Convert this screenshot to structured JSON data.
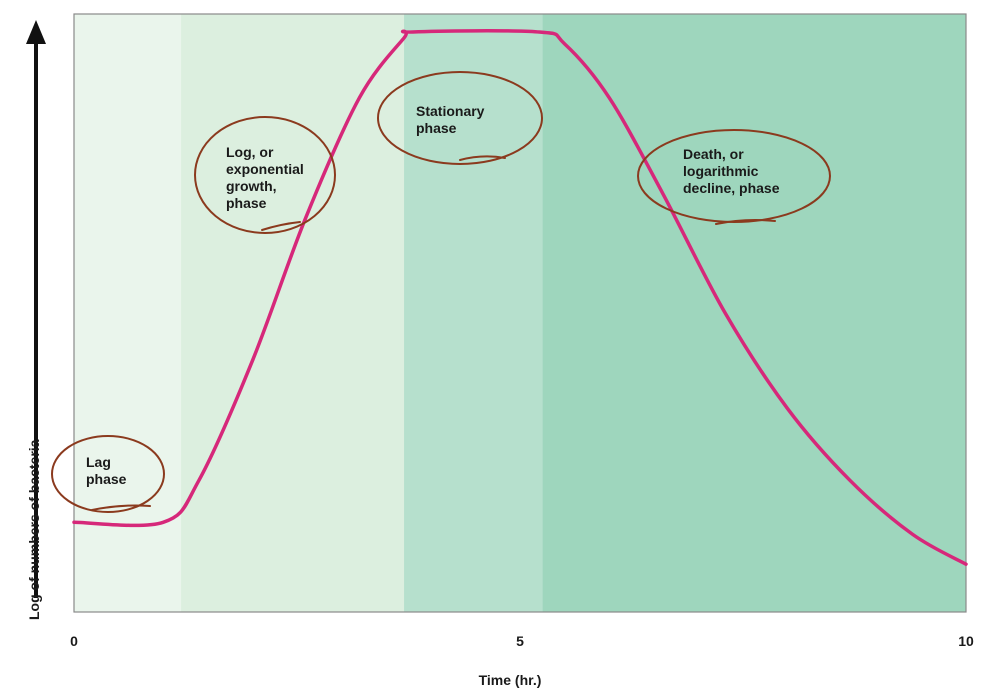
{
  "chart_data": {
    "type": "line",
    "xlabel": "Time (hr.)",
    "ylabel": "Log of numbers of bacteria",
    "xlim": [
      0,
      10
    ],
    "x_ticks": [
      "0",
      "5",
      "10"
    ],
    "series": [
      {
        "color": "#d6287a",
        "points": [
          [
            0,
            0.15
          ],
          [
            1.0,
            0.15
          ],
          [
            1.4,
            0.22
          ],
          [
            2.0,
            0.42
          ],
          [
            2.6,
            0.66
          ],
          [
            3.2,
            0.86
          ],
          [
            3.7,
            0.96
          ],
          [
            3.8,
            0.97
          ],
          [
            5.2,
            0.97
          ],
          [
            5.5,
            0.95
          ],
          [
            6.0,
            0.86
          ],
          [
            6.6,
            0.7
          ],
          [
            7.3,
            0.5
          ],
          [
            8.0,
            0.34
          ],
          [
            8.7,
            0.22
          ],
          [
            9.4,
            0.13
          ],
          [
            10.0,
            0.08
          ]
        ]
      }
    ],
    "phases": [
      {
        "key": "lag",
        "label_lines": [
          "Lag",
          "phase"
        ],
        "x_start": 0,
        "x_end": 1.2,
        "color": "#eaf5ec"
      },
      {
        "key": "log",
        "label_lines": [
          "Log, or",
          "exponential",
          "growth,",
          "phase"
        ],
        "x_start": 1.2,
        "x_end": 3.7,
        "color": "#dcefdf"
      },
      {
        "key": "stationary",
        "label_lines": [
          "Stationary",
          "phase"
        ],
        "x_start": 3.7,
        "x_end": 5.25,
        "color": "#b6e0cd"
      },
      {
        "key": "death",
        "label_lines": [
          "Death, or",
          "logarithmic",
          "decline, phase"
        ],
        "x_start": 5.25,
        "x_end": 10,
        "color": "#9ed6bd"
      }
    ],
    "grid": false,
    "annotation_color": "#8b3a1e"
  }
}
